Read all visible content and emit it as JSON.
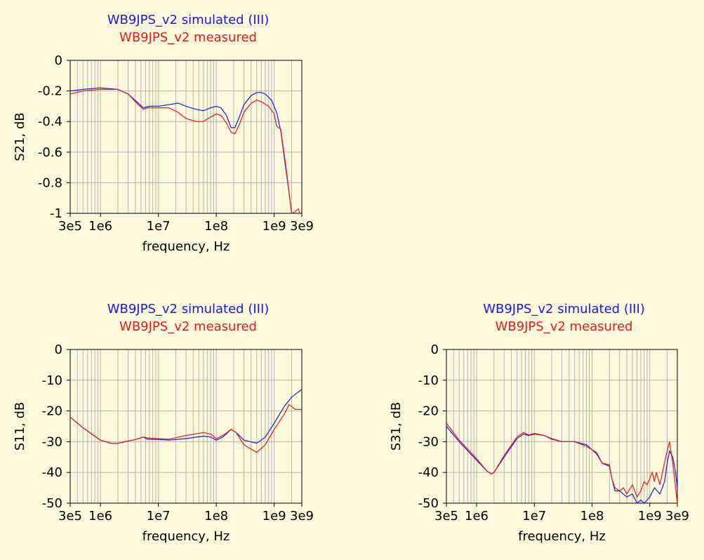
{
  "colors": {
    "background": "#fcf8dc",
    "simulated": "#1a1ae6",
    "measured": "#e61a1a",
    "grid": "#b4b4b4",
    "axis": "#000000"
  },
  "chart_data": [
    {
      "type": "line",
      "x_scale": "log",
      "legend_position": "top-center",
      "legend": [
        "WB9JPS_v2 simulated (III)",
        "WB9JPS_v2 measured"
      ],
      "xlabel": "frequency, Hz",
      "ylabel": "S21, dB",
      "xlim": [
        300000,
        3000000000
      ],
      "ylim": [
        -1,
        0
      ],
      "xticks": [
        300000,
        1000000,
        10000000,
        100000000,
        1000000000,
        3000000000
      ],
      "xtick_labels": [
        "3e5",
        "1e6",
        "1e7",
        "1e8",
        "1e9",
        "3e9"
      ],
      "yticks": [
        0,
        -0.2,
        -0.4,
        -0.6,
        -0.8,
        -1
      ],
      "ytick_labels": [
        "0",
        "-0.2",
        "-0.4",
        "-0.6",
        "-0.8",
        "-1"
      ],
      "grid": true,
      "series": [
        {
          "name": "WB9JPS_v2 simulated (III)",
          "x": [
            300000,
            500000,
            1000000,
            2000000,
            3000000,
            4500000,
            5500000,
            7000000,
            10000000,
            15000000,
            22000000,
            30000000,
            45000000,
            60000000,
            80000000,
            100000000,
            120000000,
            150000000,
            180000000,
            210000000,
            250000000,
            300000000,
            400000000,
            500000000,
            600000000,
            700000000,
            900000000,
            1100000000,
            1300000000,
            1600000000,
            1800000000,
            2000000000
          ],
          "y": [
            -0.2,
            -0.19,
            -0.18,
            -0.19,
            -0.22,
            -0.28,
            -0.31,
            -0.3,
            -0.3,
            -0.29,
            -0.28,
            -0.3,
            -0.32,
            -0.33,
            -0.31,
            -0.3,
            -0.31,
            -0.36,
            -0.44,
            -0.44,
            -0.37,
            -0.29,
            -0.23,
            -0.21,
            -0.21,
            -0.22,
            -0.26,
            -0.34,
            -0.46,
            -0.72,
            -0.86,
            -1.0
          ]
        },
        {
          "name": "WB9JPS_v2 measured",
          "x": [
            300000,
            500000,
            1000000,
            2000000,
            3000000,
            4500000,
            5500000,
            6500000,
            8000000,
            10000000,
            15000000,
            22000000,
            30000000,
            45000000,
            60000000,
            80000000,
            100000000,
            120000000,
            150000000,
            180000000,
            210000000,
            250000000,
            300000000,
            400000000,
            500000000,
            600000000,
            800000000,
            1000000000,
            1100000000,
            1300000000,
            1600000000,
            1800000000,
            2000000000,
            2300000000,
            2600000000,
            2800000000
          ],
          "y": [
            -0.22,
            -0.2,
            -0.19,
            -0.19,
            -0.22,
            -0.29,
            -0.32,
            -0.31,
            -0.31,
            -0.31,
            -0.31,
            -0.34,
            -0.38,
            -0.4,
            -0.4,
            -0.37,
            -0.35,
            -0.36,
            -0.41,
            -0.47,
            -0.48,
            -0.42,
            -0.34,
            -0.28,
            -0.26,
            -0.27,
            -0.3,
            -0.35,
            -0.43,
            -0.45,
            -0.7,
            -0.86,
            -1.0,
            -0.99,
            -0.97,
            -1.0
          ]
        }
      ]
    },
    {
      "type": "line",
      "x_scale": "log",
      "legend_position": "top-center",
      "legend": [
        "WB9JPS_v2 simulated (III)",
        "WB9JPS_v2 measured"
      ],
      "xlabel": "frequency, Hz",
      "ylabel": "S11, dB",
      "xlim": [
        300000,
        3000000000
      ],
      "ylim": [
        -50,
        0
      ],
      "xticks": [
        300000,
        1000000,
        10000000,
        100000000,
        1000000000,
        3000000000
      ],
      "xtick_labels": [
        "3e5",
        "1e6",
        "1e7",
        "1e8",
        "1e9",
        "3e9"
      ],
      "yticks": [
        0,
        -10,
        -20,
        -30,
        -40,
        -50
      ],
      "ytick_labels": [
        "0",
        "-10",
        "-20",
        "-30",
        "-40",
        "-50"
      ],
      "grid": true,
      "series": [
        {
          "name": "WB9JPS_v2 simulated (III)",
          "x": [
            300000,
            500000,
            1000000,
            1500000,
            2000000,
            3000000,
            4000000,
            5500000,
            6500000,
            10000000,
            15000000,
            30000000,
            60000000,
            80000000,
            100000000,
            130000000,
            180000000,
            220000000,
            300000000,
            500000000,
            700000000,
            1000000000,
            1500000000,
            2000000000,
            3000000000
          ],
          "y": [
            -22,
            -25.5,
            -29.5,
            -30.5,
            -30.5,
            -29.8,
            -29.3,
            -28.5,
            -29.2,
            -29.3,
            -29.5,
            -29,
            -28.2,
            -28.5,
            -29.5,
            -28.5,
            -26,
            -27,
            -29.5,
            -30.5,
            -28.5,
            -24,
            -18.5,
            -15.5,
            -13
          ]
        },
        {
          "name": "WB9JPS_v2 measured",
          "x": [
            300000,
            500000,
            1000000,
            1500000,
            2000000,
            3000000,
            4000000,
            5500000,
            6500000,
            10000000,
            15000000,
            30000000,
            60000000,
            80000000,
            100000000,
            130000000,
            180000000,
            220000000,
            300000000,
            500000000,
            700000000,
            1000000000,
            1500000000,
            1800000000,
            2000000000,
            2300000000,
            2600000000,
            3000000000
          ],
          "y": [
            -22,
            -25.5,
            -29.5,
            -30.5,
            -30.5,
            -29.8,
            -29.3,
            -28.5,
            -28.8,
            -29,
            -29.2,
            -28,
            -27,
            -27.5,
            -29,
            -28,
            -26,
            -27,
            -31,
            -33.5,
            -31,
            -26,
            -21,
            -18,
            -18.5,
            -19.5,
            -19.5,
            -19.5
          ]
        }
      ]
    },
    {
      "type": "line",
      "x_scale": "log",
      "legend_position": "top-center",
      "legend": [
        "WB9JPS_v2 simulated (III)",
        "WB9JPS_v2 measured"
      ],
      "xlabel": "frequency, Hz",
      "ylabel": "S31, dB",
      "xlim": [
        300000,
        3000000000
      ],
      "ylim": [
        -50,
        0
      ],
      "xticks": [
        300000,
        1000000,
        10000000,
        100000000,
        1000000000,
        3000000000
      ],
      "xtick_labels": [
        "3e5",
        "1e6",
        "1e7",
        "1e8",
        "1e9",
        "3e9"
      ],
      "yticks": [
        0,
        -10,
        -20,
        -30,
        -40,
        -50
      ],
      "ytick_labels": [
        "0",
        "-10",
        "-20",
        "-30",
        "-40",
        "-50"
      ],
      "grid": true,
      "series": [
        {
          "name": "WB9JPS_v2 simulated (III)",
          "x": [
            300000,
            500000,
            1000000,
            1500000,
            1800000,
            2000000,
            3000000,
            5000000,
            6500000,
            8000000,
            10000000,
            15000000,
            20000000,
            30000000,
            50000000,
            80000000,
            120000000,
            150000000,
            200000000,
            220000000,
            250000000,
            300000000,
            400000000,
            500000000,
            600000000,
            700000000,
            800000000,
            1000000000,
            1200000000,
            1500000000,
            1800000000,
            2000000000,
            2200000000,
            2500000000,
            2800000000,
            3000000000
          ],
          "y": [
            -25,
            -30,
            -36,
            -39.5,
            -40.5,
            -40,
            -35,
            -29,
            -27.5,
            -28,
            -27.5,
            -28,
            -29,
            -30,
            -30,
            -31,
            -34,
            -37,
            -38,
            -42,
            -46,
            -46,
            -48,
            -47,
            -50,
            -49,
            -50,
            -48,
            -45,
            -47,
            -43,
            -37,
            -33,
            -35,
            -40,
            -45
          ]
        },
        {
          "name": "WB9JPS_v2 measured",
          "x": [
            300000,
            500000,
            1000000,
            1500000,
            1800000,
            2000000,
            3000000,
            5000000,
            6500000,
            8000000,
            10000000,
            15000000,
            20000000,
            30000000,
            50000000,
            80000000,
            120000000,
            150000000,
            200000000,
            220000000,
            250000000,
            300000000,
            350000000,
            400000000,
            500000000,
            600000000,
            700000000,
            800000000,
            900000000,
            1000000000,
            1100000000,
            1200000000,
            1300000000,
            1500000000,
            1700000000,
            2000000000,
            2200000000,
            2500000000,
            2800000000,
            3000000000
          ],
          "y": [
            -24,
            -29.5,
            -35.5,
            -39.5,
            -40.5,
            -40,
            -34.5,
            -28.5,
            -27,
            -27.8,
            -27.3,
            -28,
            -29.2,
            -30,
            -30,
            -31.5,
            -33.5,
            -37,
            -37.5,
            -42,
            -45,
            -46,
            -45,
            -47,
            -44,
            -48,
            -46,
            -43,
            -44,
            -42,
            -40,
            -43,
            -40,
            -44,
            -39,
            -33,
            -30,
            -37,
            -45,
            -50
          ]
        }
      ]
    }
  ]
}
